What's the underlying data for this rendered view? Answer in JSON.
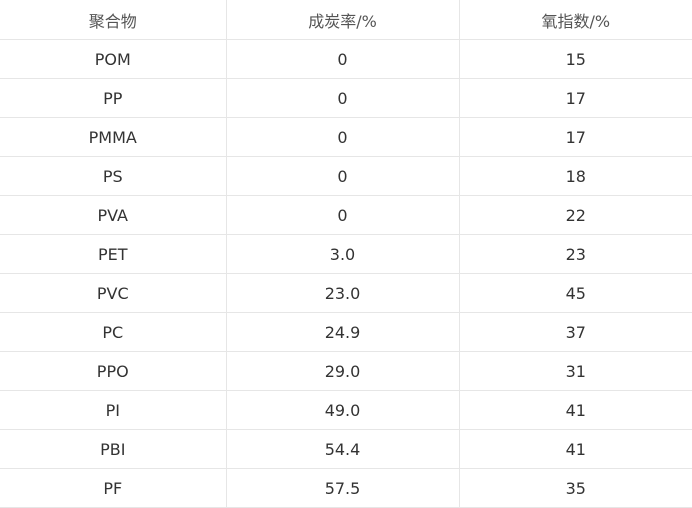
{
  "table": {
    "headers": [
      "聚合物",
      "成炭率/%",
      "氧指数/%"
    ],
    "rows": [
      [
        "POM",
        "0",
        "15"
      ],
      [
        "PP",
        "0",
        "17"
      ],
      [
        "PMMA",
        "0",
        "17"
      ],
      [
        "PS",
        "0",
        "18"
      ],
      [
        "PVA",
        "0",
        "22"
      ],
      [
        "PET",
        "3.0",
        "23"
      ],
      [
        "PVC",
        "23.0",
        "45"
      ],
      [
        "PC",
        "24.9",
        "37"
      ],
      [
        "PPO",
        "29.0",
        "31"
      ],
      [
        "PI",
        "49.0",
        "41"
      ],
      [
        "PBI",
        "54.4",
        "41"
      ],
      [
        "PF",
        "57.5",
        "35"
      ]
    ]
  }
}
